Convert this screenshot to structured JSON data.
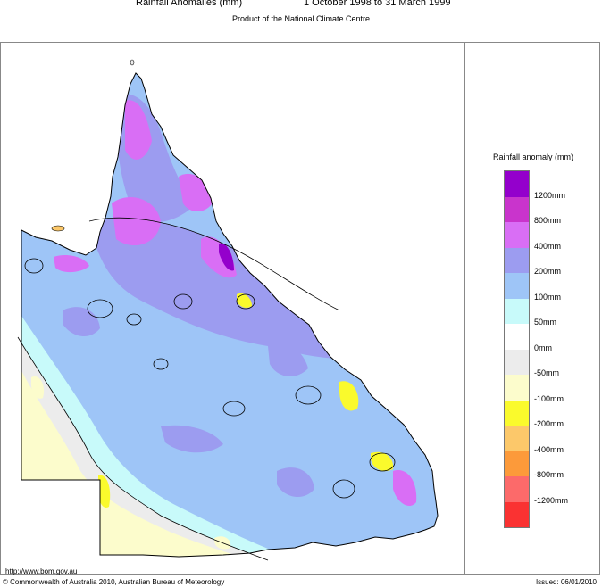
{
  "header": {
    "title": "Rainfall Anomalies (mm)",
    "period": "1 October 1998 to 31 March 1999",
    "subtitle": "Product of the National Climate Centre"
  },
  "legend": {
    "title": "Rainfall anomaly (mm)",
    "bands": [
      {
        "color": "#9400cc"
      },
      {
        "color": "#c934cc"
      },
      {
        "color": "#d96ef5"
      },
      {
        "color": "#9c9cf0"
      },
      {
        "color": "#9ec5f7"
      },
      {
        "color": "#c8fafa"
      },
      {
        "color": "#ffffff"
      },
      {
        "color": "#ececec"
      },
      {
        "color": "#fcfccc"
      },
      {
        "color": "#fafa2c"
      },
      {
        "color": "#fcc86a"
      },
      {
        "color": "#fc9a3a"
      },
      {
        "color": "#fc6a6a"
      },
      {
        "color": "#fa3232"
      }
    ],
    "labels": [
      "1200mm",
      "800mm",
      "400mm",
      "200mm",
      "100mm",
      "50mm",
      "0mm",
      "-50mm",
      "-100mm",
      "-200mm",
      "-400mm",
      "-800mm",
      "-1200mm"
    ]
  },
  "footer": {
    "url": "http://www.bom.gov.au",
    "copyright": "© Commonwealth of Australia 2010, Australian Bureau of Meteorology",
    "issued": "Issued: 06/01/2010"
  }
}
